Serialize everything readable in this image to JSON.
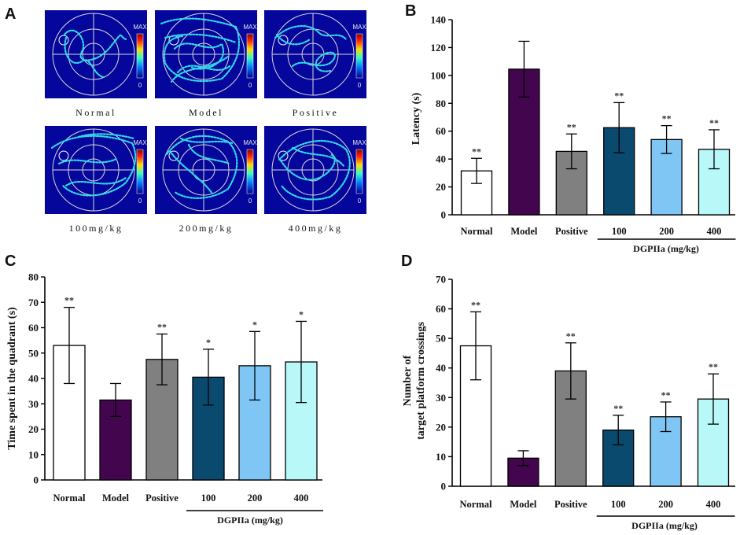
{
  "panel_a": {
    "letter": "A",
    "scale_max": "MAX",
    "scale_min": "0",
    "colors": {
      "arena": "#04069c",
      "ring": "#d8d8d8"
    },
    "maps": [
      {
        "label": "Normal"
      },
      {
        "label": "Model"
      },
      {
        "label": "Positive"
      },
      {
        "label": "100mg/kg"
      },
      {
        "label": "200mg/kg"
      },
      {
        "label": "400mg/kg"
      }
    ]
  },
  "chart_data": [
    {
      "panel": "B",
      "type": "bar",
      "title": "",
      "ylabel": "Latency (s)",
      "xlabel": "",
      "categories": [
        "Normal",
        "Model",
        "Positive",
        "100",
        "200",
        "400"
      ],
      "values": [
        31.5,
        104.5,
        45.5,
        62.5,
        54,
        47
      ],
      "errors": [
        9,
        20,
        12.5,
        18,
        10,
        14
      ],
      "significance": [
        "**",
        "",
        "**",
        "**",
        "**",
        "**"
      ],
      "colors": [
        "#ffffff",
        "#43064e",
        "#808080",
        "#0b4a6f",
        "#7fc6f4",
        "#b8f8f8"
      ],
      "ylim": [
        0,
        140
      ],
      "yticks": [
        0,
        20,
        40,
        60,
        80,
        100,
        120,
        140
      ],
      "group_label": "DGPIIa (mg/kg)"
    },
    {
      "panel": "C",
      "type": "bar",
      "title": "",
      "ylabel": "Time spent in the quadrant (s)",
      "xlabel": "",
      "categories": [
        "Normal",
        "Model",
        "Positive",
        "100",
        "200",
        "400"
      ],
      "values": [
        53,
        31.5,
        47.5,
        40.5,
        45,
        46.5
      ],
      "errors": [
        15,
        6.5,
        10,
        11,
        13.5,
        16
      ],
      "significance": [
        "**",
        "",
        "**",
        "*",
        "*",
        "*"
      ],
      "colors": [
        "#ffffff",
        "#43064e",
        "#808080",
        "#0b4a6f",
        "#7fc6f4",
        "#b8f8f8"
      ],
      "ylim": [
        0,
        80
      ],
      "yticks": [
        0,
        10,
        20,
        30,
        40,
        50,
        60,
        70,
        80
      ],
      "group_label": "DGPIIa (mg/kg)"
    },
    {
      "panel": "D",
      "type": "bar",
      "title": "",
      "ylabel": "Number of",
      "ylabel2": "target platform crossings",
      "xlabel": "",
      "categories": [
        "Normal",
        "Model",
        "Positive",
        "100",
        "200",
        "400"
      ],
      "values": [
        47.5,
        9.5,
        39,
        19,
        23.5,
        29.5
      ],
      "errors": [
        11.5,
        2.5,
        9.5,
        5,
        5,
        8.5
      ],
      "significance": [
        "**",
        "",
        "**",
        "**",
        "**",
        "**"
      ],
      "colors": [
        "#ffffff",
        "#43064e",
        "#808080",
        "#0b4a6f",
        "#7fc6f4",
        "#b8f8f8"
      ],
      "ylim": [
        0,
        70
      ],
      "yticks": [
        0,
        10,
        20,
        30,
        40,
        50,
        60,
        70
      ],
      "group_label": "DGPIIa (mg/kg)"
    }
  ]
}
